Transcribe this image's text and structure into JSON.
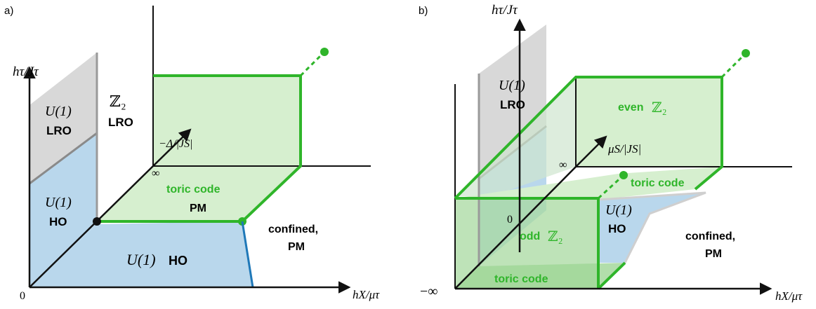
{
  "panel_a": {
    "label": "a)",
    "axis_y": "hτ/Jτ",
    "axis_x": "hX/μτ",
    "axis_depth": "−Δ/|JS|",
    "origin": "0",
    "infinity": "∞",
    "u1_lro": {
      "symbol": "U(1)",
      "text": "LRO"
    },
    "z2_lro": {
      "symbol": "ℤ₂",
      "text": "LRO"
    },
    "u1_ho_left": {
      "symbol": "U(1)",
      "text": "HO"
    },
    "toric": {
      "line1": "toric code",
      "line2": "PM"
    },
    "u1_ho_bottom": {
      "symbol": "U(1)",
      "text": "HO"
    },
    "confined": {
      "line1": "confined,",
      "line2": "PM"
    }
  },
  "panel_b": {
    "label": "b)",
    "axis_y": "hτ/Jτ",
    "axis_x": "hX/μτ",
    "axis_depth": "μS/|JS|",
    "zero": "0",
    "infinity": "∞",
    "neg_infinity": "−∞",
    "u1_lro": {
      "symbol": "U(1)",
      "text": "LRO"
    },
    "even_z2": {
      "text": "even",
      "symbol": "ℤ₂"
    },
    "toric_top": "toric code",
    "u1_ho": {
      "symbol": "U(1)",
      "text": "HO"
    },
    "odd_z2": {
      "text": "odd",
      "symbol": "ℤ₂"
    },
    "toric_bottom": "toric code",
    "confined": {
      "line1": "confined,",
      "line2": "PM"
    }
  },
  "colors": {
    "green": "#2fb52a",
    "green_fill": "#d6efcf",
    "blue_fill": "#b9d7ec",
    "blue_line": "#1f78b8",
    "gray_fill": "#d8d8d8",
    "gray_line": "#8a8a8a"
  }
}
